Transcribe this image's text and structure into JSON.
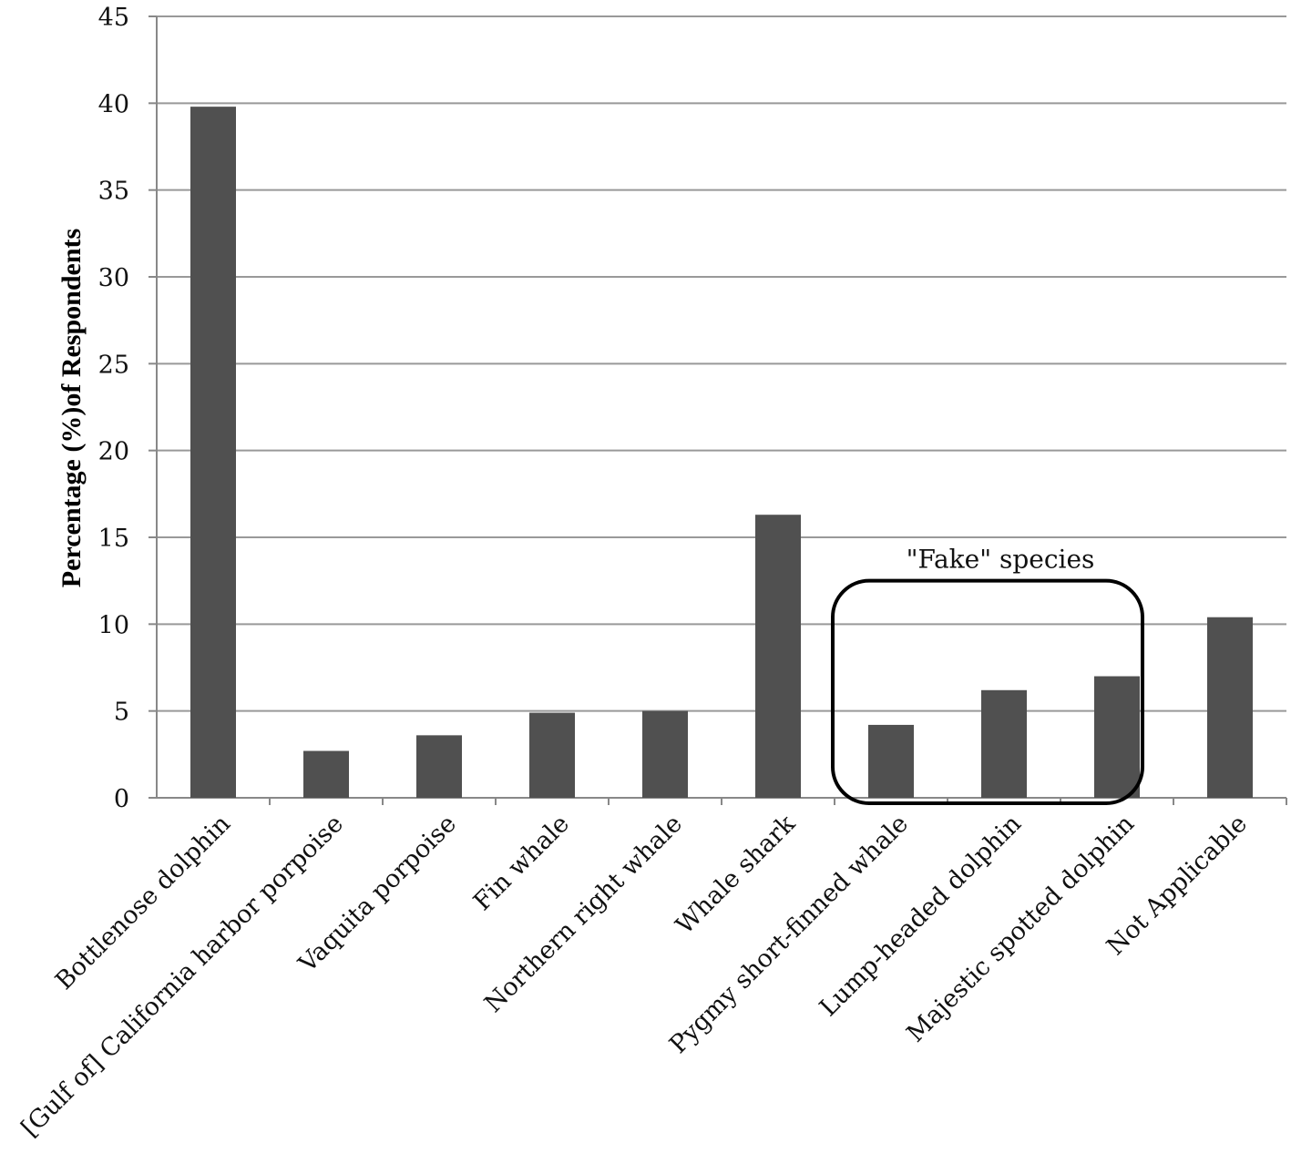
{
  "chart_data": {
    "type": "bar",
    "title": "",
    "xlabel": "",
    "ylabel": "Percentage (%)of Respondents",
    "ylim": [
      0,
      45
    ],
    "yticks": [
      0,
      5,
      10,
      15,
      20,
      25,
      30,
      35,
      40,
      45
    ],
    "grid": true,
    "legend": "none",
    "categories": [
      "Bottlenose dolphin",
      "[Gulf of] California harbor porpoise",
      "Vaquita porpoise",
      "Fin whale",
      "Northern right whale",
      "Whale shark",
      "Pygmy short-finned whale",
      "Lump-headed dolphin",
      "Majestic spotted dolphin",
      "Not Applicable"
    ],
    "values": [
      39.8,
      2.7,
      3.6,
      4.9,
      5.0,
      16.3,
      4.2,
      6.2,
      7.0,
      10.4
    ],
    "bar_color": "#505050",
    "grid_color": "#999999",
    "annotation": {
      "text": "\"Fake\" species",
      "categories": [
        "Pygmy short-finned whale",
        "Lump-headed dolphin",
        "Majestic spotted dolphin"
      ]
    }
  }
}
